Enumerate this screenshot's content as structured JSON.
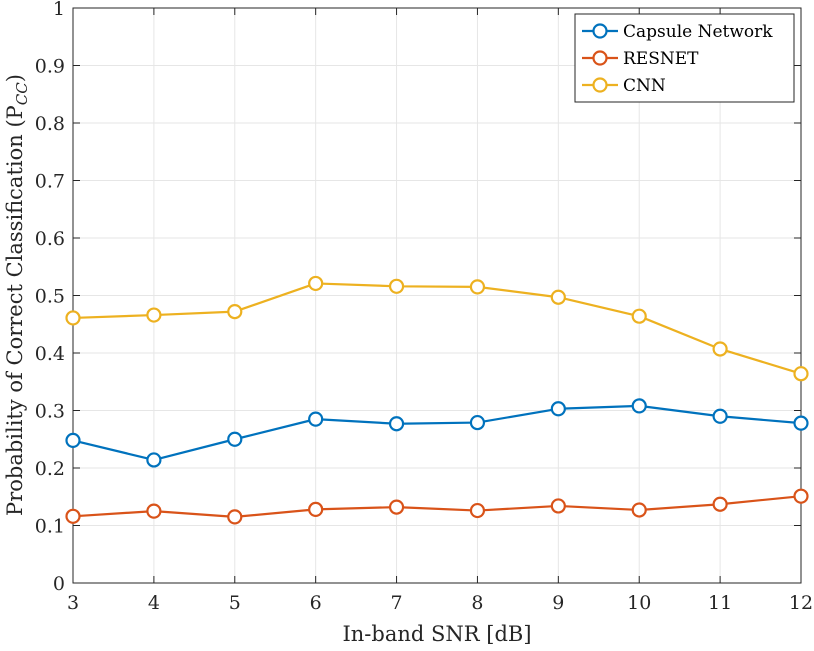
{
  "chart_data": {
    "type": "line",
    "title": "",
    "xlabel": "In-band SNR [dB]",
    "ylabel": "Probability of Correct Classification (P",
    "ylabel_subscript": "CC",
    "ylabel_close": ")",
    "xlim": [
      3,
      12
    ],
    "ylim": [
      0,
      1
    ],
    "grid": true,
    "legend_position": "top-right",
    "x": [
      3,
      4,
      5,
      6,
      7,
      8,
      9,
      10,
      11,
      12
    ],
    "x_ticks": [
      3,
      4,
      5,
      6,
      7,
      8,
      9,
      10,
      11,
      12
    ],
    "y_ticks": [
      0,
      0.1,
      0.2,
      0.3,
      0.4,
      0.5,
      0.6,
      0.7,
      0.8,
      0.9,
      1
    ],
    "x_tick_labels": [
      "3",
      "4",
      "5",
      "6",
      "7",
      "8",
      "9",
      "10",
      "11",
      "12"
    ],
    "y_tick_labels": [
      "0",
      "0.1",
      "0.2",
      "0.3",
      "0.4",
      "0.5",
      "0.6",
      "0.7",
      "0.8",
      "0.9",
      "1"
    ],
    "series": [
      {
        "name": "Capsule Network",
        "color": "#0072BD",
        "values": [
          0.248,
          0.214,
          0.25,
          0.285,
          0.277,
          0.279,
          0.303,
          0.308,
          0.29,
          0.278
        ]
      },
      {
        "name": "RESNET",
        "color": "#D95319",
        "values": [
          0.116,
          0.125,
          0.115,
          0.128,
          0.132,
          0.126,
          0.134,
          0.127,
          0.137,
          0.151
        ]
      },
      {
        "name": "CNN",
        "color": "#EDB120",
        "values": [
          0.461,
          0.466,
          0.472,
          0.521,
          0.516,
          0.515,
          0.497,
          0.464,
          0.407,
          0.364
        ]
      }
    ]
  }
}
